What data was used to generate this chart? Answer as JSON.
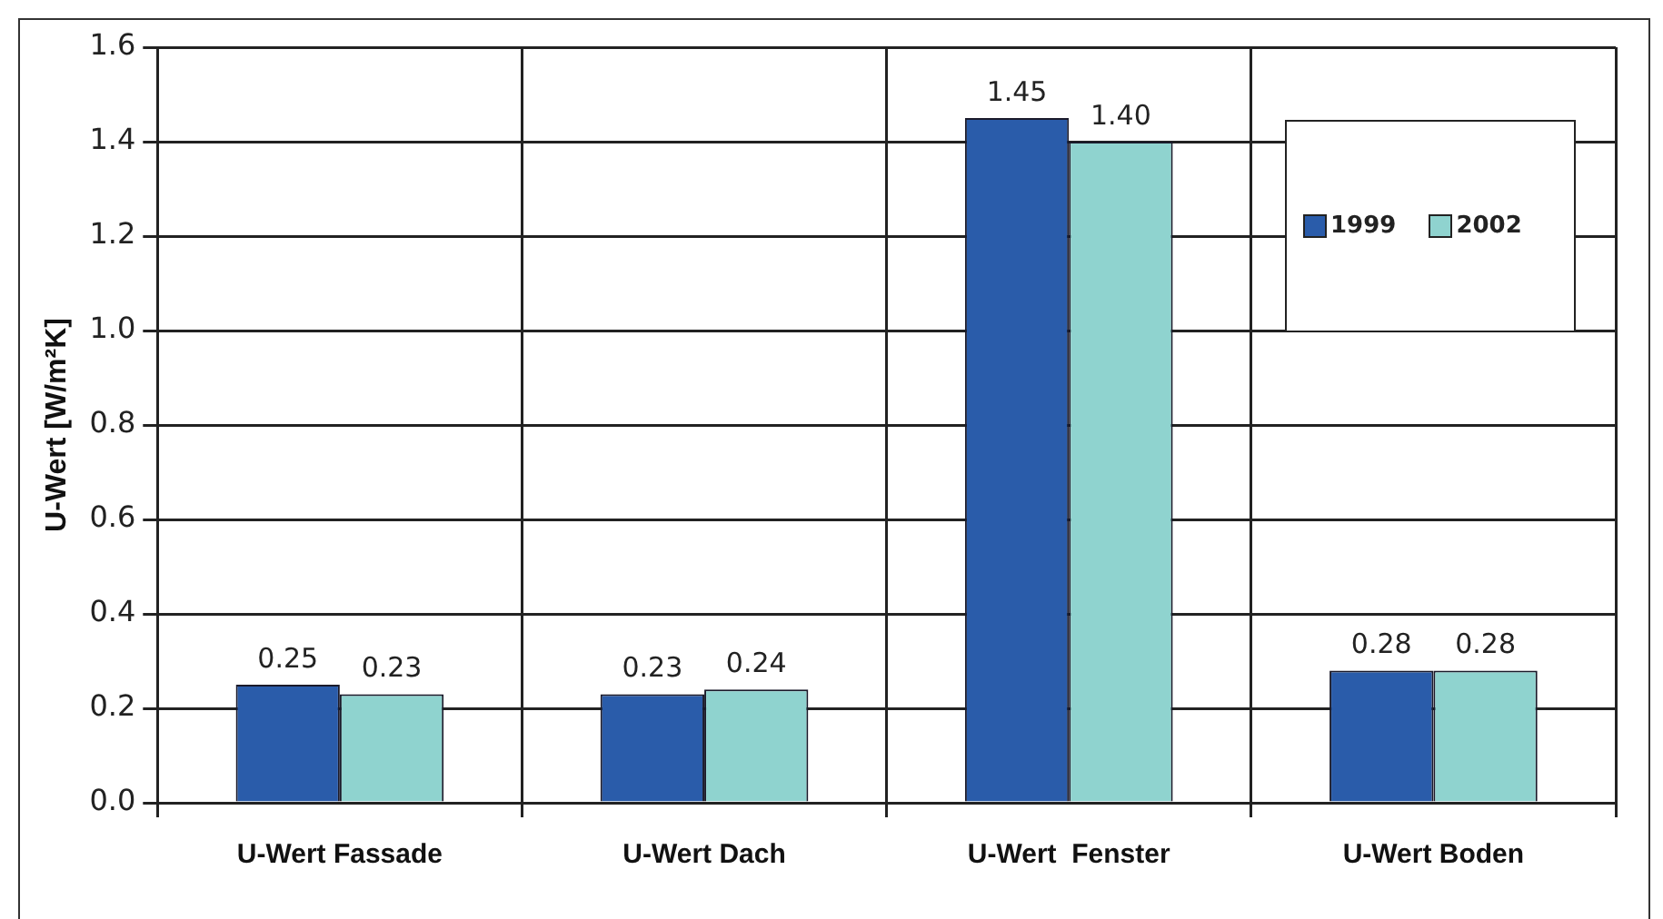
{
  "chart_data": {
    "type": "bar",
    "ylabel": "U-Wert [W/m²K]",
    "categories": [
      "U-Wert Fassade",
      "U-Wert Dach",
      "U-Wert  Fenster",
      "U-Wert Boden"
    ],
    "series": [
      {
        "name": "1999",
        "color": "#2a5caa",
        "values": [
          0.25,
          0.23,
          1.45,
          0.28
        ],
        "value_labels": [
          "0.25",
          "0.23",
          "1.45",
          "0.28"
        ]
      },
      {
        "name": "2002",
        "color": "#8fd3cf",
        "values": [
          0.23,
          0.24,
          1.4,
          0.28
        ],
        "value_labels": [
          "0.23",
          "0.24",
          "1.40",
          "0.28"
        ]
      }
    ],
    "ylim": [
      0,
      1.6
    ],
    "yticks": [
      {
        "value": 0,
        "label": "0.0"
      },
      {
        "value": 0.2,
        "label": "0.2"
      },
      {
        "value": 0.4,
        "label": "0.4"
      },
      {
        "value": 0.6,
        "label": "0.6"
      },
      {
        "value": 0.8,
        "label": "0.8"
      },
      {
        "value": 1.0,
        "label": "1.0"
      },
      {
        "value": 1.2,
        "label": "1.2"
      },
      {
        "value": 1.4,
        "label": "1.4"
      },
      {
        "value": 1.6,
        "label": "1.6"
      }
    ],
    "grid": true,
    "legend": "top right"
  }
}
